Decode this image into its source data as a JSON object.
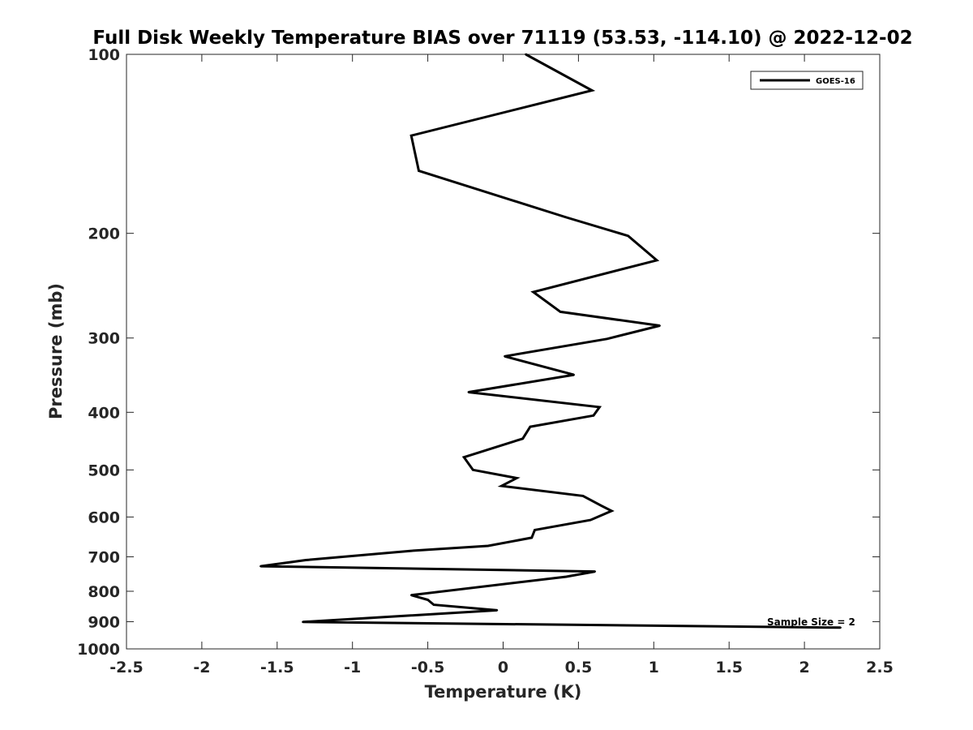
{
  "chart_data": {
    "type": "line",
    "title": "Full Disk Weekly Temperature BIAS over 71119 (53.53, -114.10) @ 2022-12-02",
    "xlabel": "Temperature (K)",
    "ylabel": "Pressure (mb)",
    "xlim": [
      -2.5,
      2.5
    ],
    "ylim": [
      100,
      1000
    ],
    "y_scale": "log",
    "y_reversed": true,
    "x_ticks": [
      "-2.5",
      "-2",
      "-1.5",
      "-1",
      "-0.5",
      "0",
      "0.5",
      "1",
      "1.5",
      "2",
      "2.5"
    ],
    "x_tick_values": [
      -2.5,
      -2,
      -1.5,
      -1,
      -0.5,
      0,
      0.5,
      1,
      1.5,
      2,
      2.5
    ],
    "y_ticks": [
      "100",
      "200",
      "300",
      "400",
      "500",
      "600",
      "700",
      "800",
      "900",
      "1000"
    ],
    "y_tick_values": [
      100,
      200,
      300,
      400,
      500,
      600,
      700,
      800,
      900,
      1000
    ],
    "grid": false,
    "legend_position": "top-right",
    "annotation": "Sample Size = 2",
    "series": [
      {
        "name": "GOES-16",
        "color": "#000000",
        "points": [
          {
            "x": 0.15,
            "y": 100
          },
          {
            "x": 0.59,
            "y": 115
          },
          {
            "x": -0.61,
            "y": 137
          },
          {
            "x": -0.56,
            "y": 157
          },
          {
            "x": 0.42,
            "y": 188
          },
          {
            "x": 0.83,
            "y": 202
          },
          {
            "x": 1.02,
            "y": 222
          },
          {
            "x": 0.2,
            "y": 251
          },
          {
            "x": 0.38,
            "y": 271
          },
          {
            "x": 1.04,
            "y": 286
          },
          {
            "x": 0.69,
            "y": 301
          },
          {
            "x": 0.01,
            "y": 322
          },
          {
            "x": 0.47,
            "y": 346
          },
          {
            "x": -0.23,
            "y": 370
          },
          {
            "x": 0.64,
            "y": 392
          },
          {
            "x": 0.6,
            "y": 405
          },
          {
            "x": 0.18,
            "y": 423
          },
          {
            "x": 0.13,
            "y": 443
          },
          {
            "x": -0.26,
            "y": 476
          },
          {
            "x": -0.2,
            "y": 500
          },
          {
            "x": 0.09,
            "y": 516
          },
          {
            "x": -0.01,
            "y": 532
          },
          {
            "x": 0.53,
            "y": 553
          },
          {
            "x": 0.65,
            "y": 574
          },
          {
            "x": 0.72,
            "y": 586
          },
          {
            "x": 0.58,
            "y": 607
          },
          {
            "x": 0.21,
            "y": 631
          },
          {
            "x": 0.19,
            "y": 650
          },
          {
            "x": -0.1,
            "y": 671
          },
          {
            "x": -0.61,
            "y": 684
          },
          {
            "x": -1.31,
            "y": 709
          },
          {
            "x": -1.61,
            "y": 726
          },
          {
            "x": 0.61,
            "y": 741
          },
          {
            "x": 0.42,
            "y": 756
          },
          {
            "x": -0.61,
            "y": 812
          },
          {
            "x": -0.5,
            "y": 827
          },
          {
            "x": -0.46,
            "y": 843
          },
          {
            "x": -0.04,
            "y": 861
          },
          {
            "x": -1.33,
            "y": 901
          },
          {
            "x": 2.24,
            "y": 921
          }
        ]
      }
    ]
  }
}
